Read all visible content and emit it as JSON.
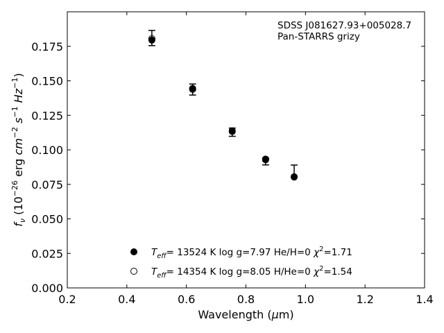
{
  "chart_data": {
    "type": "scatter",
    "title": "",
    "xlabel": {
      "main": "Wavelength (",
      "sym": "μ",
      "unit": "m)"
    },
    "ylabel": {
      "f": "f",
      "nu": "ν",
      "p1": " (10",
      "e1": "−26",
      "p2": " erg ",
      "cm": "cm",
      "e2": "−2",
      "s": " s",
      "e3": "−1",
      "hz": " Hz",
      "e4": "−1",
      "p3": ")"
    },
    "xlim": [
      0.2,
      1.4
    ],
    "ylim": [
      0.0,
      0.2
    ],
    "xticks": [
      "0.2",
      "0.4",
      "0.6",
      "0.8",
      "1.0",
      "1.2",
      "1.4"
    ],
    "yticks": [
      "0.000",
      "0.025",
      "0.050",
      "0.075",
      "0.100",
      "0.125",
      "0.150",
      "0.175"
    ],
    "annotation": [
      "SDSS J081627.93+005028.7",
      "Pan-STARRS grizy"
    ],
    "observed": {
      "x": [
        0.484,
        0.621,
        0.754,
        0.866,
        0.962
      ],
      "y": [
        0.181,
        0.1437,
        0.1128,
        0.0916,
        0.08
      ],
      "yerr_low": [
        0.0055,
        0.004,
        0.003,
        0.0025,
        0.0
      ],
      "yerr_high": [
        0.0055,
        0.004,
        0.003,
        0.0025,
        0.009
      ]
    },
    "series": [
      {
        "marker": "filled",
        "label": {
          "t": "T",
          "eff": "eff",
          "rest": "= 13524 K  log g=7.97  He/H=0  ",
          "chi": "χ",
          "sq": "2",
          "val": "=1.71"
        },
        "x": [
          0.484,
          0.621,
          0.754,
          0.866,
          0.962
        ],
        "y": [
          0.1795,
          0.1445,
          0.1138,
          0.0933,
          0.0803
        ]
      },
      {
        "marker": "open",
        "label": {
          "t": "T",
          "eff": "eff",
          "rest": "= 14354 K  log g=8.05  H/He=0  ",
          "chi": "χ",
          "sq": "2",
          "val": "=1.54"
        },
        "x": [
          0.484,
          0.621,
          0.754,
          0.866,
          0.962
        ],
        "y": [
          0.1805,
          0.1438,
          0.1133,
          0.0928,
          0.0805
        ]
      }
    ],
    "legend_position": "lower-center",
    "grid": false
  }
}
